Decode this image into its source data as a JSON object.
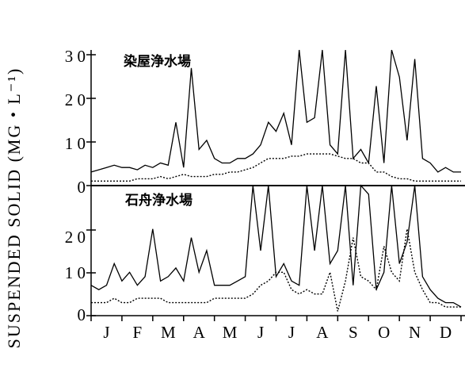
{
  "chart_data": [
    {
      "type": "line",
      "title": "染屋浄水場",
      "ylabel": "SUSPENDED SOLID (MG・L⁻¹)",
      "xlabel": "",
      "ylim": [
        0,
        30
      ],
      "yticks": [
        "0",
        "1 0",
        "2 0",
        "3 0"
      ],
      "month_labels": [
        "J",
        "F",
        "M",
        "A",
        "M",
        "J",
        "J",
        "A",
        "S",
        "O",
        "N",
        "D"
      ],
      "x": [
        0.0,
        0.25,
        0.5,
        0.75,
        1.0,
        1.25,
        1.5,
        1.75,
        2.0,
        2.25,
        2.5,
        2.75,
        3.0,
        3.25,
        3.5,
        3.75,
        4.0,
        4.25,
        4.5,
        4.75,
        5.0,
        5.25,
        5.5,
        5.75,
        6.0,
        6.25,
        6.5,
        6.75,
        7.0,
        7.25,
        7.5,
        7.75,
        8.0,
        8.25,
        8.5,
        8.75,
        9.0,
        9.25,
        9.5,
        9.75,
        10.0,
        10.25,
        10.5,
        10.75,
        11.0,
        11.25,
        11.5,
        11.75,
        12.0
      ],
      "series": [
        {
          "line_style": "solid",
          "values": [
            3,
            3.5,
            4,
            4.5,
            4,
            4,
            3.5,
            4.5,
            4,
            5,
            4.5,
            14,
            4,
            26,
            8,
            10,
            6,
            5,
            5,
            6,
            6,
            7,
            9,
            14,
            12,
            16,
            9,
            30,
            14,
            15,
            30,
            9,
            7,
            30,
            6,
            8,
            5,
            22,
            5,
            30,
            24,
            10,
            28,
            6,
            5,
            3,
            4,
            3,
            3
          ]
        },
        {
          "line_style": "dotted",
          "values": [
            1,
            1,
            1,
            1,
            1,
            1,
            1.5,
            1.5,
            1.5,
            2,
            1.5,
            2,
            2.5,
            2,
            2,
            2,
            2.5,
            2.5,
            3,
            3,
            3.5,
            4,
            5,
            6,
            6,
            6,
            6.5,
            6.5,
            7,
            7,
            7,
            7,
            6.5,
            6,
            6,
            5,
            5,
            3,
            3,
            2,
            1.5,
            1.5,
            1,
            1,
            1,
            1,
            1,
            1,
            1
          ]
        }
      ]
    },
    {
      "type": "line",
      "title": "石舟浄水場",
      "ylabel": "",
      "xlabel": "",
      "ylim": [
        0,
        30
      ],
      "yticks": [
        "0",
        "1 0",
        "2 0"
      ],
      "month_labels": [
        "J",
        "F",
        "M",
        "A",
        "M",
        "J",
        "J",
        "A",
        "S",
        "O",
        "N",
        "D"
      ],
      "x": [
        0.0,
        0.25,
        0.5,
        0.75,
        1.0,
        1.25,
        1.5,
        1.75,
        2.0,
        2.25,
        2.5,
        2.75,
        3.0,
        3.25,
        3.5,
        3.75,
        4.0,
        4.25,
        4.5,
        4.75,
        5.0,
        5.25,
        5.5,
        5.75,
        6.0,
        6.25,
        6.5,
        6.75,
        7.0,
        7.25,
        7.5,
        7.75,
        8.0,
        8.25,
        8.5,
        8.75,
        9.0,
        9.25,
        9.5,
        9.75,
        10.0,
        10.25,
        10.5,
        10.75,
        11.0,
        11.25,
        11.5,
        11.75,
        12.0
      ],
      "series": [
        {
          "line_style": "solid",
          "values": [
            7,
            6,
            7,
            12,
            8,
            10,
            7,
            9,
            20,
            8,
            9,
            11,
            8,
            18,
            10,
            15,
            7,
            7,
            7,
            8,
            9,
            30,
            15,
            30,
            9,
            12,
            8,
            7,
            30,
            15,
            30,
            12,
            15,
            30,
            7,
            30,
            28,
            6,
            10,
            30,
            12,
            17,
            30,
            9,
            6,
            4,
            3,
            3,
            2
          ]
        },
        {
          "line_style": "dotted",
          "values": [
            3,
            3,
            3,
            4,
            3,
            3,
            4,
            4,
            4,
            4,
            3,
            3,
            3,
            3,
            3,
            3,
            4,
            4,
            4,
            4,
            4,
            5,
            7,
            8,
            10,
            10,
            6,
            5,
            6,
            5,
            5,
            10,
            1,
            8,
            18,
            9,
            8,
            6,
            16,
            10,
            8,
            20,
            10,
            6,
            3,
            3,
            2,
            2,
            2
          ]
        }
      ]
    }
  ]
}
